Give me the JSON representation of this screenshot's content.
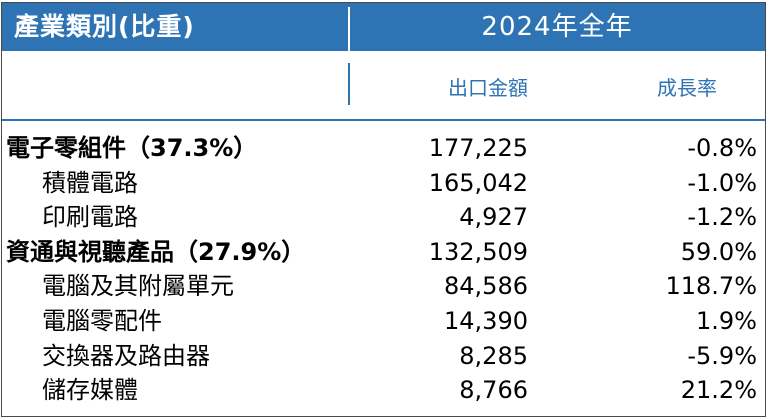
{
  "header": {
    "category_title": "產業類別(比重)",
    "year_title": "2024年全年"
  },
  "subheader": {
    "export_label": "出口金額",
    "growth_label": "成長率"
  },
  "rows": [
    {
      "name": "電子零組件（37.3%）",
      "export": "177,225",
      "growth": "-0.8%",
      "level": "main"
    },
    {
      "name": "積體電路",
      "export": "165,042",
      "growth": "-1.0%",
      "level": "sub"
    },
    {
      "name": "印刷電路",
      "export": "4,927",
      "growth": "-1.2%",
      "level": "sub"
    },
    {
      "name": "資通與視聽產品（27.9%）",
      "export": "132,509",
      "growth": "59.0%",
      "level": "main"
    },
    {
      "name": "電腦及其附屬單元",
      "export": "84,586",
      "growth": "118.7%",
      "level": "sub"
    },
    {
      "name": "電腦零配件",
      "export": "14,390",
      "growth": "1.9%",
      "level": "sub"
    },
    {
      "name": "交換器及路由器",
      "export": "8,285",
      "growth": "-5.9%",
      "level": "sub"
    },
    {
      "name": "儲存媒體",
      "export": "8,766",
      "growth": "21.2%",
      "level": "sub"
    }
  ]
}
